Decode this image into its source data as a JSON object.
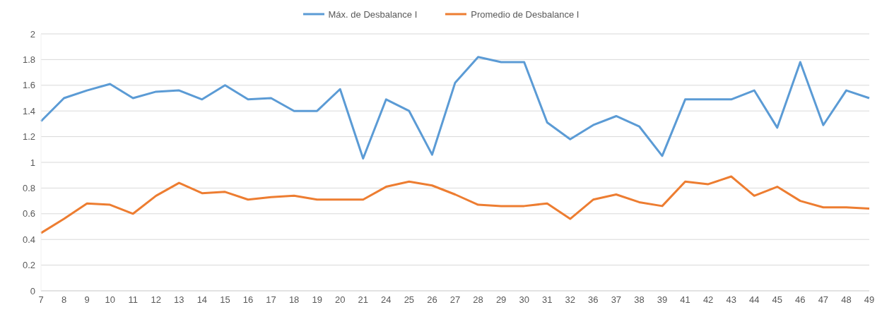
{
  "chart_data": {
    "type": "line",
    "categories": [
      "7",
      "8",
      "9",
      "10",
      "11",
      "12",
      "13",
      "14",
      "15",
      "16",
      "17",
      "18",
      "19",
      "20",
      "21",
      "24",
      "25",
      "26",
      "27",
      "28",
      "29",
      "30",
      "31",
      "32",
      "36",
      "37",
      "38",
      "39",
      "41",
      "42",
      "43",
      "44",
      "45",
      "46",
      "47",
      "48",
      "49"
    ],
    "series": [
      {
        "name": "Máx. de Desbalance I",
        "color": "#5b9bd5",
        "values": [
          1.32,
          1.5,
          1.56,
          1.61,
          1.5,
          1.55,
          1.56,
          1.49,
          1.6,
          1.49,
          1.5,
          1.4,
          1.4,
          1.57,
          1.03,
          1.49,
          1.4,
          1.06,
          1.62,
          1.82,
          1.78,
          1.78,
          1.31,
          1.18,
          1.29,
          1.36,
          1.28,
          1.05,
          1.49,
          1.49,
          1.49,
          1.56,
          1.27,
          1.78,
          1.29,
          1.56,
          1.5
        ]
      },
      {
        "name": "Promedio de Desbalance I",
        "color": "#ed7d31",
        "values": [
          0.45,
          0.56,
          0.68,
          0.67,
          0.6,
          0.74,
          0.84,
          0.76,
          0.77,
          0.71,
          0.73,
          0.74,
          0.71,
          0.71,
          0.71,
          0.81,
          0.85,
          0.82,
          0.75,
          0.67,
          0.66,
          0.66,
          0.68,
          0.56,
          0.71,
          0.75,
          0.69,
          0.66,
          0.85,
          0.83,
          0.89,
          0.74,
          0.81,
          0.7,
          0.65,
          0.65,
          0.64
        ]
      }
    ],
    "ylim": [
      0,
      2
    ],
    "yticks": [
      0,
      0.2,
      0.4,
      0.6,
      0.8,
      1,
      1.2,
      1.4,
      1.6,
      1.8,
      2
    ],
    "grid": "y",
    "legend": "top",
    "marker": "none",
    "line_style": "solid"
  }
}
